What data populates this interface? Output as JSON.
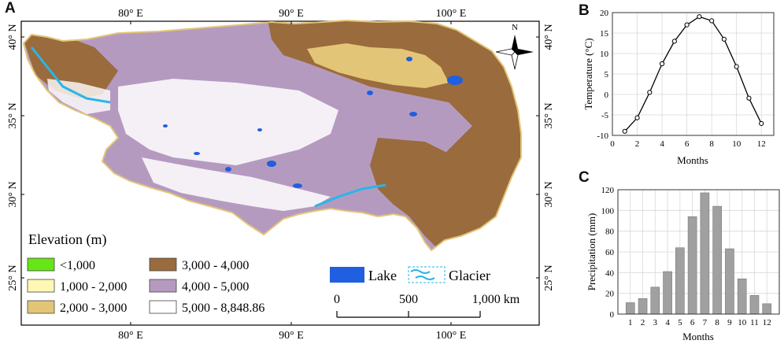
{
  "panels": {
    "a": "A",
    "b": "B",
    "c": "C"
  },
  "map": {
    "lon_ticks_top": [
      "80° E",
      "90° E",
      "100° E"
    ],
    "lon_ticks_bottom": [
      "80° E",
      "90° E",
      "100° E"
    ],
    "lat_ticks_left": [
      "40° N",
      "35° N",
      "30° N",
      "25° N"
    ],
    "lat_ticks_right": [
      "40° N",
      "35° N",
      "30° N",
      "25° N"
    ],
    "north_label": "N",
    "legend": {
      "title": "Elevation (m)",
      "items": [
        {
          "label": "<1,000",
          "color": "#66e617"
        },
        {
          "label": "1,000 - 2,000",
          "color": "#fff8b5"
        },
        {
          "label": "2,000 - 3,000",
          "color": "#e3c577"
        },
        {
          "label": "3,000 - 4,000",
          "color": "#9a6b3c"
        },
        {
          "label": "4,000 - 5,000",
          "color": "#b59ac0"
        },
        {
          "label": "5,000 - 8,848.86",
          "color": "#ffffff"
        }
      ],
      "lake_label": "Lake",
      "lake_color": "#1f5fe0",
      "glacier_label": "Glacier",
      "glacier_color": "#29b6e8"
    },
    "scalebar": {
      "ticks": [
        "0",
        "500",
        "1,000 km"
      ]
    }
  },
  "chart_data": [
    {
      "type": "line",
      "x": [
        1,
        2,
        3,
        4,
        5,
        6,
        7,
        8,
        9,
        10,
        11,
        12
      ],
      "values": [
        -9,
        -5.7,
        0.5,
        7.5,
        13,
        17,
        19,
        18,
        13.5,
        6.8,
        -0.9,
        -7.1
      ],
      "xlabel": "Months",
      "ylabel": "Temperature (°C)",
      "xlim": [
        0,
        13
      ],
      "ylim": [
        -10,
        20
      ],
      "xticks": [
        "0",
        "2",
        "4",
        "6",
        "8",
        "10",
        "12"
      ],
      "yticks": [
        "-10",
        "-5",
        "0",
        "5",
        "10",
        "15",
        "20"
      ],
      "grid": true,
      "color": "#000000"
    },
    {
      "type": "bar",
      "categories": [
        "1",
        "2",
        "3",
        "4",
        "5",
        "6",
        "7",
        "8",
        "9",
        "10",
        "11",
        "12"
      ],
      "values": [
        11,
        15,
        26,
        41,
        64,
        94,
        117,
        104,
        63,
        34,
        18,
        10
      ],
      "xlabel": "Months",
      "ylabel": "Precipitation (mm)",
      "ylim": [
        0,
        120
      ],
      "yticks": [
        "0",
        "20",
        "40",
        "60",
        "80",
        "100",
        "120"
      ],
      "grid": true,
      "color": "#a0a0a0"
    }
  ]
}
